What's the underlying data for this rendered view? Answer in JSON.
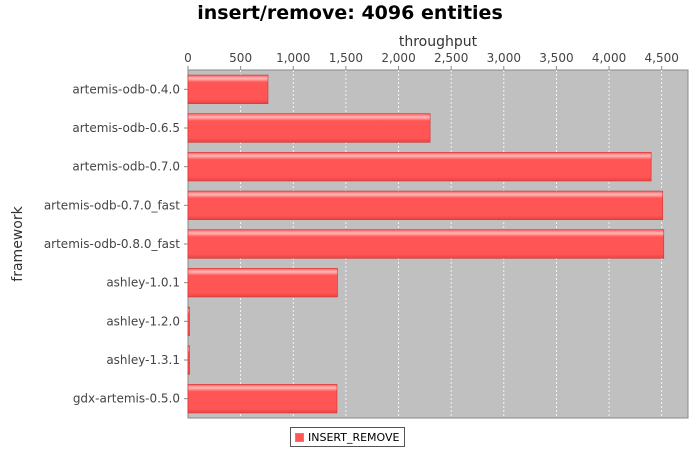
{
  "chart_data": {
    "type": "bar",
    "orientation": "horizontal",
    "title": "insert/remove: 4096 entities",
    "xlabel": "throughput",
    "ylabel": "framework",
    "xlim": [
      0,
      4750
    ],
    "x_ticks": [
      0,
      500,
      1000,
      1500,
      2000,
      2500,
      3000,
      3500,
      4000,
      4500
    ],
    "x_tick_labels": [
      "0",
      "500",
      "1,000",
      "1,500",
      "2,000",
      "2,500",
      "3,000",
      "3,500",
      "4,000",
      "4,500"
    ],
    "grid": true,
    "x_axis_position": "top",
    "legend_position": "bottom",
    "categories": [
      "artemis-odb-0.4.0",
      "artemis-odb-0.6.5",
      "artemis-odb-0.7.0",
      "artemis-odb-0.7.0_fast",
      "artemis-odb-0.8.0_fast",
      "ashley-1.0.1",
      "ashley-1.2.0",
      "ashley-1.3.1",
      "gdx-artemis-0.5.0"
    ],
    "series": [
      {
        "name": "INSERT_REMOVE",
        "color": "#ff5555",
        "values": [
          760,
          2300,
          4400,
          4510,
          4520,
          1420,
          10,
          10,
          1415
        ]
      }
    ]
  },
  "colors": {
    "plot_background": "#c0c0c0",
    "bar": "#ff5555",
    "bar_highlight": "#ffbbbb",
    "gridline": "#ffffff"
  }
}
